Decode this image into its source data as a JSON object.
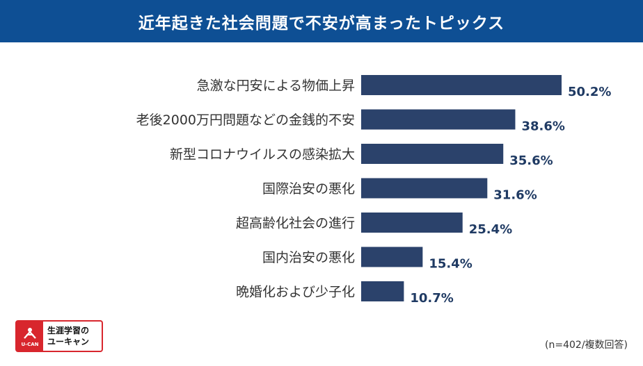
{
  "header": {
    "title": "近年起きた社会問題で不安が高まったトピックス"
  },
  "chart_data": {
    "type": "bar",
    "orientation": "horizontal",
    "title": "近年起きた社会問題で不安が高まったトピックス",
    "unit": "%",
    "categories": [
      "急激な円安による物価上昇",
      "老後2000万円問題などの金銭的不安",
      "新型コロナウイルスの感染拡大",
      "国際治安の悪化",
      "超高齢化社会の進行",
      "国内治安の悪化",
      "晩婚化および少子化"
    ],
    "values": [
      50.2,
      38.6,
      35.6,
      31.6,
      25.4,
      15.4,
      10.7
    ],
    "value_labels": [
      "50.2%",
      "38.6%",
      "35.6%",
      "31.6%",
      "25.4%",
      "15.4%",
      "10.7%"
    ],
    "xlim": [
      0,
      50.2
    ],
    "bar_color": "#2b426b",
    "grid": false
  },
  "footnote": "(n=402/複数回答)",
  "logo": {
    "mark_text": "U-CAN",
    "line1": "生涯学習の",
    "line2": "ユーキャン",
    "color": "#d8262d"
  }
}
